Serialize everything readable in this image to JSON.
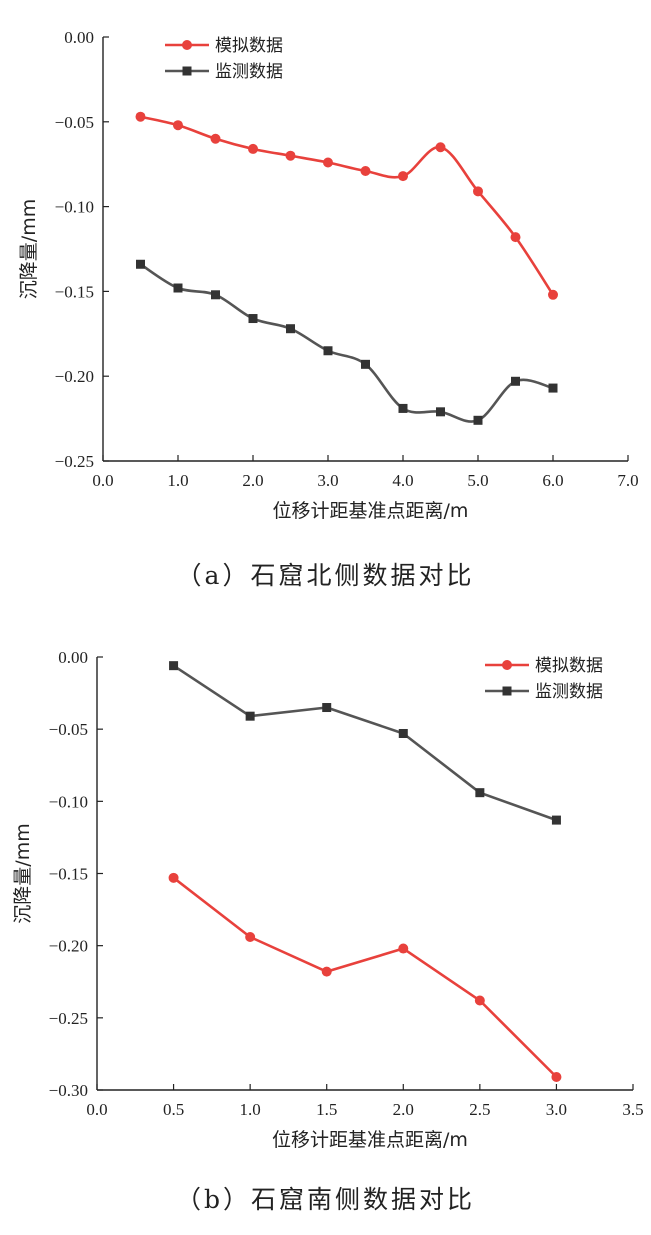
{
  "chart_data": [
    {
      "type": "line",
      "smooth": true,
      "caption": "（a）石窟北侧数据对比",
      "xlabel": "位移计距基准点距离/m",
      "ylabel": "沉降量/mm",
      "xlim": [
        0.0,
        7.0
      ],
      "ylim": [
        -0.25,
        0.0
      ],
      "xticks": [
        "0.0",
        "1.0",
        "2.0",
        "3.0",
        "4.0",
        "5.0",
        "6.0",
        "7.0"
      ],
      "yticks": [
        "0.00",
        "-0.05",
        "-0.10",
        "-0.15",
        "-0.20",
        "-0.25"
      ],
      "legend_position": "top-left",
      "x": [
        0.5,
        1.0,
        1.5,
        2.0,
        2.5,
        3.0,
        3.5,
        4.0,
        4.5,
        5.0,
        5.5,
        6.0
      ],
      "series": [
        {
          "name": "模拟数据",
          "color": "#e8413c",
          "marker": "circle",
          "values": [
            -0.047,
            -0.052,
            -0.06,
            -0.066,
            -0.07,
            -0.074,
            -0.079,
            -0.082,
            -0.065,
            -0.091,
            -0.118,
            -0.152
          ]
        },
        {
          "name": "监测数据",
          "color": "#555555",
          "marker": "square",
          "values": [
            -0.134,
            -0.148,
            -0.152,
            -0.166,
            -0.172,
            -0.185,
            -0.193,
            -0.219,
            -0.221,
            -0.226,
            -0.203,
            -0.207
          ]
        }
      ]
    },
    {
      "type": "line",
      "smooth": false,
      "caption": "（b）石窟南侧数据对比",
      "xlabel": "位移计距基准点距离/m",
      "ylabel": "沉降量/mm",
      "xlim": [
        0.0,
        3.5
      ],
      "ylim": [
        -0.3,
        0.0
      ],
      "xticks": [
        "0.0",
        "0.5",
        "1.0",
        "1.5",
        "2.0",
        "2.5",
        "3.0",
        "3.5"
      ],
      "yticks": [
        "0.00",
        "-0.05",
        "-0.10",
        "-0.15",
        "-0.20",
        "-0.25",
        "-0.30"
      ],
      "legend_position": "top-right",
      "x": [
        0.5,
        1.0,
        1.5,
        2.0,
        2.5,
        3.0
      ],
      "series": [
        {
          "name": "模拟数据",
          "color": "#e8413c",
          "marker": "circle",
          "values": [
            -0.153,
            -0.194,
            -0.218,
            -0.202,
            -0.238,
            -0.291
          ]
        },
        {
          "name": "监测数据",
          "color": "#555555",
          "marker": "square",
          "values": [
            -0.006,
            -0.041,
            -0.035,
            -0.053,
            -0.094,
            -0.113
          ]
        }
      ]
    }
  ]
}
